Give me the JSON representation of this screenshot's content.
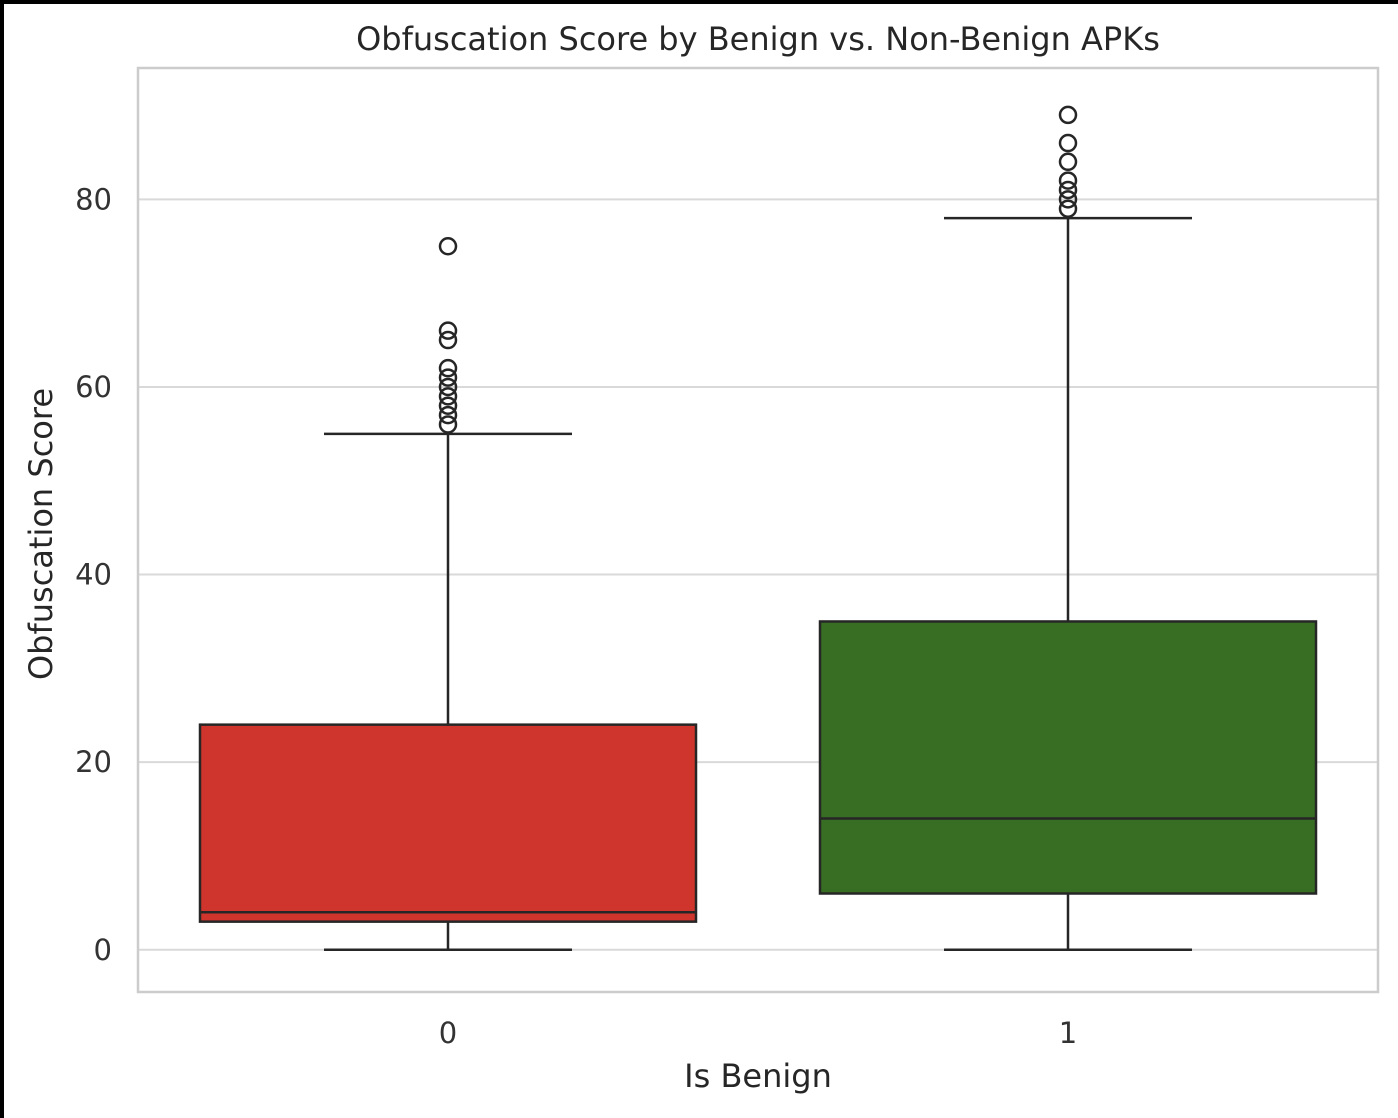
{
  "chart_data": {
    "type": "box",
    "title": "Obfuscation Score by Benign vs. Non-Benign APKs",
    "xlabel": "Is Benign",
    "ylabel": "Obfuscation Score",
    "ylim": [
      -4.5,
      94
    ],
    "yticks": [
      0,
      20,
      40,
      60,
      80
    ],
    "grid": true,
    "categories": [
      "0",
      "1"
    ],
    "boxes": [
      {
        "category": "0",
        "color": "#d0352d",
        "whisker_low": 0,
        "q1": 3,
        "median": 4,
        "q3": 24,
        "whisker_high": 55,
        "outliers": [
          56,
          57,
          58,
          59,
          60,
          61,
          62,
          65,
          66,
          75
        ]
      },
      {
        "category": "1",
        "color": "#376e23",
        "whisker_low": 0,
        "q1": 6,
        "median": 14,
        "q3": 35,
        "whisker_high": 78,
        "outliers": [
          79,
          80,
          81,
          82,
          84,
          86,
          89
        ]
      }
    ]
  },
  "colors": {
    "frame": "#000000",
    "background": "#ffffff",
    "grid": "#d9d9d9",
    "spine": "#cccccc",
    "line": "#262626"
  }
}
